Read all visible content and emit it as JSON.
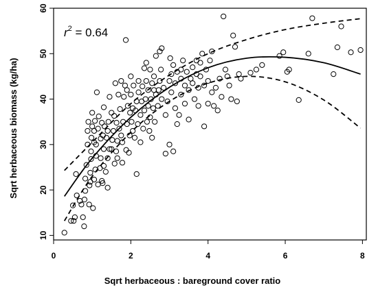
{
  "chart_data": {
    "type": "scatter",
    "title": "",
    "xlabel": "Sqrt herbaceous : bareground cover ratio",
    "ylabel": "Sqrt herbaceous biomass (kg/ha)",
    "xlim": [
      0,
      8.1
    ],
    "ylim": [
      9,
      60
    ],
    "x_ticks": [
      0,
      2,
      4,
      6,
      8
    ],
    "y_ticks": [
      10,
      20,
      30,
      40,
      50,
      60
    ],
    "grid": false,
    "annotation": {
      "r": "r",
      "sup": "2",
      "rest": " = 0.64"
    },
    "points": [
      [
        0.28,
        10.6
      ],
      [
        0.45,
        13.2
      ],
      [
        0.52,
        13.2
      ],
      [
        0.55,
        14.0
      ],
      [
        0.5,
        16.6
      ],
      [
        0.6,
        18.8
      ],
      [
        0.58,
        23.5
      ],
      [
        0.68,
        17.6
      ],
      [
        0.72,
        16.8
      ],
      [
        0.76,
        14.0
      ],
      [
        0.79,
        12.0
      ],
      [
        0.8,
        17.9
      ],
      [
        0.82,
        19.8
      ],
      [
        0.82,
        22.5
      ],
      [
        0.85,
        25.5
      ],
      [
        0.88,
        30.0
      ],
      [
        0.88,
        33.0
      ],
      [
        0.9,
        35.0
      ],
      [
        0.92,
        16.8
      ],
      [
        0.93,
        21.0
      ],
      [
        0.95,
        23.8
      ],
      [
        0.97,
        26.8
      ],
      [
        0.97,
        28.5
      ],
      [
        0.98,
        31.5
      ],
      [
        1.0,
        34.0
      ],
      [
        1.0,
        37.0
      ],
      [
        1.02,
        16.0
      ],
      [
        1.05,
        22.3
      ],
      [
        1.05,
        33.0
      ],
      [
        1.07,
        35.2
      ],
      [
        1.08,
        24.5
      ],
      [
        1.1,
        27.5
      ],
      [
        1.1,
        30.0
      ],
      [
        1.12,
        41.5
      ],
      [
        1.15,
        21.2
      ],
      [
        1.15,
        33.5
      ],
      [
        1.17,
        36.2
      ],
      [
        1.2,
        24.8
      ],
      [
        1.22,
        27.0
      ],
      [
        1.22,
        31.3
      ],
      [
        1.25,
        34.8
      ],
      [
        1.27,
        21.5
      ],
      [
        1.28,
        32.0
      ],
      [
        1.3,
        25.3
      ],
      [
        1.3,
        29.0
      ],
      [
        1.3,
        38.2
      ],
      [
        1.32,
        34.0
      ],
      [
        1.35,
        24.0
      ],
      [
        1.37,
        31.5
      ],
      [
        1.4,
        27.0
      ],
      [
        1.4,
        33.0
      ],
      [
        1.42,
        35.0
      ],
      [
        1.45,
        29.0
      ],
      [
        1.45,
        40.5
      ],
      [
        1.5,
        29.0
      ],
      [
        1.5,
        37.0
      ],
      [
        1.52,
        31.0
      ],
      [
        1.55,
        33.0
      ],
      [
        1.57,
        36.3
      ],
      [
        1.58,
        25.8
      ],
      [
        1.6,
        43.5
      ],
      [
        1.62,
        28.5
      ],
      [
        1.63,
        34.8
      ],
      [
        1.65,
        27.0
      ],
      [
        1.65,
        30.8
      ],
      [
        1.68,
        41.0
      ],
      [
        1.7,
        33.5
      ],
      [
        1.72,
        37.8
      ],
      [
        1.75,
        32.0
      ],
      [
        1.75,
        44.0
      ],
      [
        1.78,
        26.0
      ],
      [
        1.78,
        30.5
      ],
      [
        1.8,
        35.0
      ],
      [
        1.82,
        40.5
      ],
      [
        1.85,
        43.0
      ],
      [
        1.87,
        53.0
      ],
      [
        1.88,
        28.8
      ],
      [
        1.9,
        34.5
      ],
      [
        1.9,
        42.0
      ],
      [
        1.92,
        38.5
      ],
      [
        1.95,
        28.2
      ],
      [
        1.97,
        32.0
      ],
      [
        1.98,
        37.0
      ],
      [
        2.0,
        41.0
      ],
      [
        2.0,
        45.0
      ],
      [
        2.02,
        35.0
      ],
      [
        2.05,
        33.0
      ],
      [
        2.05,
        38.0
      ],
      [
        2.07,
        43.0
      ],
      [
        2.1,
        31.5
      ],
      [
        2.12,
        37.5
      ],
      [
        2.15,
        23.5
      ],
      [
        2.15,
        39.5
      ],
      [
        2.18,
        34.5
      ],
      [
        2.2,
        41.5
      ],
      [
        2.2,
        44.0
      ],
      [
        2.25,
        30.5
      ],
      [
        2.25,
        36.5
      ],
      [
        2.28,
        39.5
      ],
      [
        2.3,
        42.8
      ],
      [
        2.32,
        33.5
      ],
      [
        2.35,
        37.5
      ],
      [
        2.38,
        40.0
      ],
      [
        2.4,
        44.0
      ],
      [
        2.4,
        48.0
      ],
      [
        2.42,
        35.0
      ],
      [
        2.45,
        38.5
      ],
      [
        2.45,
        42.0
      ],
      [
        2.48,
        33.0
      ],
      [
        2.5,
        36.0
      ],
      [
        2.5,
        46.5
      ],
      [
        2.52,
        40.0
      ],
      [
        2.55,
        31.5
      ],
      [
        2.55,
        43.5
      ],
      [
        2.58,
        38.0
      ],
      [
        2.6,
        42.0
      ],
      [
        2.6,
        45.0
      ],
      [
        2.62,
        35.0
      ],
      [
        2.65,
        41.0
      ],
      [
        2.65,
        49.5
      ],
      [
        2.7,
        38.5
      ],
      [
        2.72,
        42.0
      ],
      [
        2.75,
        44.0
      ],
      [
        2.75,
        50.5
      ],
      [
        2.78,
        46.5
      ],
      [
        2.8,
        51.2
      ],
      [
        2.8,
        40.0
      ],
      [
        2.85,
        42.5
      ],
      [
        2.9,
        36.5
      ],
      [
        2.9,
        28.0
      ],
      [
        2.95,
        39.5
      ],
      [
        3.0,
        30.0
      ],
      [
        3.0,
        44.0
      ],
      [
        3.02,
        49.0
      ],
      [
        3.05,
        41.5
      ],
      [
        3.05,
        45.5
      ],
      [
        3.1,
        28.5
      ],
      [
        3.1,
        47.5
      ],
      [
        3.15,
        38.0
      ],
      [
        3.15,
        43.5
      ],
      [
        3.2,
        34.5
      ],
      [
        3.2,
        46.0
      ],
      [
        3.25,
        36.5
      ],
      [
        3.3,
        41.0
      ],
      [
        3.3,
        44.5
      ],
      [
        3.35,
        48.5
      ],
      [
        3.4,
        39.0
      ],
      [
        3.4,
        43.0
      ],
      [
        3.45,
        46.0
      ],
      [
        3.5,
        35.5
      ],
      [
        3.5,
        42.0
      ],
      [
        3.55,
        44.5
      ],
      [
        3.6,
        43.5
      ],
      [
        3.6,
        47.0
      ],
      [
        3.65,
        40.0
      ],
      [
        3.7,
        45.5
      ],
      [
        3.75,
        38.5
      ],
      [
        3.75,
        42.5
      ],
      [
        3.8,
        45.0
      ],
      [
        3.8,
        48.0
      ],
      [
        3.85,
        50.0
      ],
      [
        3.9,
        34.0
      ],
      [
        3.9,
        43.0
      ],
      [
        3.95,
        46.5
      ],
      [
        4.0,
        39.0
      ],
      [
        4.0,
        44.0
      ],
      [
        4.05,
        48.5
      ],
      [
        4.1,
        41.5
      ],
      [
        4.15,
        38.5
      ],
      [
        4.2,
        42.5
      ],
      [
        4.25,
        37.5
      ],
      [
        4.3,
        44.5
      ],
      [
        4.35,
        40.5
      ],
      [
        4.4,
        58.2
      ],
      [
        4.45,
        46.5
      ],
      [
        4.5,
        45.0
      ],
      [
        4.55,
        43.0
      ],
      [
        4.6,
        40.0
      ],
      [
        4.65,
        54.0
      ],
      [
        4.7,
        51.5
      ],
      [
        4.75,
        39.5
      ],
      [
        4.8,
        45.5
      ],
      [
        5.25,
        46.5
      ],
      [
        5.4,
        47.5
      ],
      [
        5.85,
        49.5
      ],
      [
        5.95,
        50.3
      ],
      [
        6.05,
        46.0
      ],
      [
        6.1,
        46.5
      ],
      [
        6.35,
        39.8
      ],
      [
        6.6,
        50.0
      ],
      [
        6.7,
        57.8
      ],
      [
        7.25,
        45.5
      ],
      [
        7.35,
        51.4
      ],
      [
        7.45,
        56.0
      ],
      [
        7.7,
        50.3
      ],
      [
        7.95,
        50.8
      ],
      [
        3.3,
        46.5
      ],
      [
        3.7,
        48.5
      ],
      [
        2.35,
        46.8
      ],
      [
        4.1,
        50.5
      ],
      [
        5.1,
        45.8
      ],
      [
        4.85,
        44.5
      ],
      [
        1.4,
        20.5
      ],
      [
        0.95,
        21.8
      ],
      [
        1.05,
        30.5
      ],
      [
        1.25,
        22.0
      ]
    ],
    "fit": [
      [
        0.28,
        18.6
      ],
      [
        1,
        27.0
      ],
      [
        2,
        36.0
      ],
      [
        3,
        42.6
      ],
      [
        4,
        46.9
      ],
      [
        5,
        49.0
      ],
      [
        6,
        49.2
      ],
      [
        7,
        48.0
      ],
      [
        7.95,
        45.5
      ]
    ],
    "ci_upper": [
      [
        0.28,
        24.3
      ],
      [
        1,
        30.5
      ],
      [
        2,
        39.0
      ],
      [
        3,
        45.3
      ],
      [
        4,
        50.0
      ],
      [
        5,
        53.1
      ],
      [
        6,
        55.3
      ],
      [
        7,
        56.7
      ],
      [
        7.95,
        57.7
      ]
    ],
    "ci_lower": [
      [
        0.28,
        13.2
      ],
      [
        1,
        23.0
      ],
      [
        2,
        32.7
      ],
      [
        3,
        39.5
      ],
      [
        4,
        43.5
      ],
      [
        5,
        45.0
      ],
      [
        6,
        43.8
      ],
      [
        7,
        39.8
      ],
      [
        7.95,
        33.6
      ]
    ]
  }
}
